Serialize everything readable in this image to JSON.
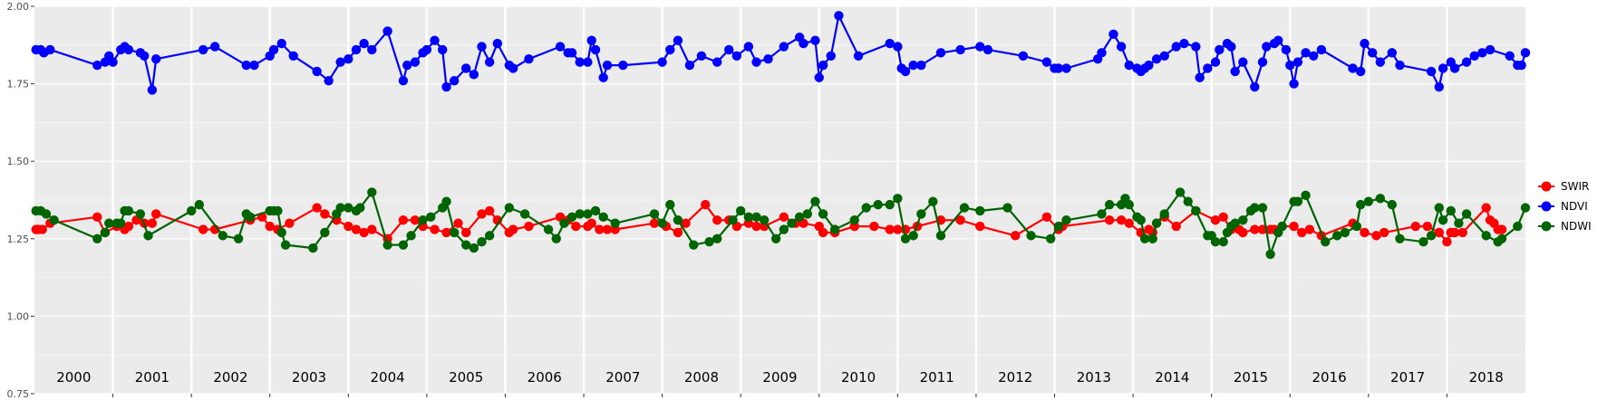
{
  "chart_data": {
    "type": "line",
    "title": "",
    "xlabel": "",
    "ylabel": "",
    "ylim": [
      0.75,
      2.0
    ],
    "y_ticks": [
      "0.75",
      "1.00",
      "1.25",
      "1.50",
      "1.75",
      "2.00"
    ],
    "xlim": [
      2000.0,
      2019.0
    ],
    "year_labels": [
      "2000",
      "2001",
      "2002",
      "2003",
      "2004",
      "2005",
      "2006",
      "2007",
      "2008",
      "2009",
      "2010",
      "2011",
      "2012",
      "2013",
      "2014",
      "2015",
      "2016",
      "2017",
      "2018"
    ],
    "grid": true,
    "legend_position": "right",
    "series": [
      {
        "name": "SWIR",
        "color": "#ff0000",
        "x": [
          2000.02,
          2000.05,
          2000.1,
          2000.2,
          2000.8,
          2000.9,
          2001.05,
          2001.15,
          2001.2,
          2001.3,
          2001.4,
          2001.5,
          2001.55,
          2002.15,
          2002.3,
          2002.75,
          2002.9,
          2003.0,
          2003.1,
          2003.25,
          2003.6,
          2003.7,
          2003.85,
          2004.0,
          2004.1,
          2004.2,
          2004.3,
          2004.5,
          2004.7,
          2004.85,
          2004.95,
          2005.1,
          2005.25,
          2005.4,
          2005.5,
          2005.7,
          2005.8,
          2005.9,
          2006.05,
          2006.1,
          2006.3,
          2006.7,
          2006.8,
          2006.9,
          2007.05,
          2007.1,
          2007.2,
          2007.3,
          2007.4,
          2007.9,
          2008.05,
          2008.2,
          2008.3,
          2008.55,
          2008.7,
          2008.85,
          2008.95,
          2009.1,
          2009.2,
          2009.3,
          2009.55,
          2009.7,
          2009.8,
          2010.0,
          2010.05,
          2010.2,
          2010.45,
          2010.7,
          2010.9,
          2011.0,
          2011.1,
          2011.25,
          2011.55,
          2011.8,
          2012.05,
          2012.5,
          2012.9,
          2013.05,
          2013.1,
          2013.7,
          2013.85,
          2013.95,
          2014.1,
          2014.2,
          2014.25,
          2014.3,
          2014.4,
          2014.55,
          2014.8,
          2015.05,
          2015.15,
          2015.25,
          2015.35,
          2015.4,
          2015.55,
          2015.65,
          2015.75,
          2015.8,
          2015.9,
          2016.05,
          2016.15,
          2016.25,
          2016.4,
          2016.8,
          2016.95,
          2017.1,
          2017.2,
          2017.6,
          2017.75,
          2017.9,
          2018.0,
          2018.05,
          2018.1,
          2018.2,
          2018.5,
          2018.55,
          2018.6,
          2018.65,
          2018.7
        ],
        "values": [
          1.28,
          1.28,
          1.28,
          1.3,
          1.32,
          1.27,
          1.29,
          1.28,
          1.29,
          1.31,
          1.3,
          1.3,
          1.33,
          1.28,
          1.28,
          1.31,
          1.32,
          1.29,
          1.28,
          1.3,
          1.35,
          1.33,
          1.31,
          1.29,
          1.28,
          1.27,
          1.28,
          1.25,
          1.31,
          1.31,
          1.29,
          1.28,
          1.27,
          1.3,
          1.27,
          1.33,
          1.34,
          1.31,
          1.27,
          1.28,
          1.29,
          1.32,
          1.31,
          1.29,
          1.29,
          1.3,
          1.28,
          1.28,
          1.28,
          1.3,
          1.29,
          1.27,
          1.3,
          1.36,
          1.31,
          1.31,
          1.29,
          1.3,
          1.29,
          1.29,
          1.32,
          1.3,
          1.3,
          1.29,
          1.27,
          1.27,
          1.29,
          1.29,
          1.28,
          1.28,
          1.28,
          1.29,
          1.31,
          1.31,
          1.29,
          1.26,
          1.32,
          1.28,
          1.29,
          1.31,
          1.31,
          1.3,
          1.27,
          1.28,
          1.27,
          1.3,
          1.32,
          1.29,
          1.34,
          1.31,
          1.32,
          1.28,
          1.28,
          1.27,
          1.28,
          1.28,
          1.28,
          1.28,
          1.29,
          1.29,
          1.27,
          1.28,
          1.26,
          1.3,
          1.27,
          1.26,
          1.27,
          1.29,
          1.29,
          1.27,
          1.24,
          1.27,
          1.27,
          1.27,
          1.35,
          1.31,
          1.3,
          1.28,
          1.28
        ]
      },
      {
        "name": "NDVI",
        "color": "#0000ff",
        "x": [
          2000.02,
          2000.08,
          2000.12,
          2000.2,
          2000.8,
          2000.9,
          2000.95,
          2001.0,
          2001.1,
          2001.15,
          2001.2,
          2001.35,
          2001.4,
          2001.5,
          2001.55,
          2002.15,
          2002.3,
          2002.7,
          2002.8,
          2003.0,
          2003.05,
          2003.15,
          2003.3,
          2003.6,
          2003.75,
          2003.9,
          2004.0,
          2004.1,
          2004.2,
          2004.3,
          2004.5,
          2004.7,
          2004.75,
          2004.85,
          2004.95,
          2005.0,
          2005.1,
          2005.2,
          2005.25,
          2005.35,
          2005.5,
          2005.6,
          2005.7,
          2005.8,
          2005.9,
          2006.05,
          2006.1,
          2006.3,
          2006.7,
          2006.8,
          2006.85,
          2006.95,
          2007.05,
          2007.1,
          2007.15,
          2007.25,
          2007.3,
          2007.5,
          2008.0,
          2008.1,
          2008.2,
          2008.35,
          2008.5,
          2008.7,
          2008.85,
          2008.95,
          2009.1,
          2009.2,
          2009.35,
          2009.55,
          2009.75,
          2009.8,
          2009.95,
          2010.0,
          2010.05,
          2010.15,
          2010.25,
          2010.5,
          2010.9,
          2011.0,
          2011.05,
          2011.1,
          2011.2,
          2011.3,
          2011.55,
          2011.8,
          2012.05,
          2012.15,
          2012.6,
          2012.9,
          2013.0,
          2013.05,
          2013.15,
          2013.55,
          2013.6,
          2013.75,
          2013.85,
          2013.95,
          2014.05,
          2014.1,
          2014.15,
          2014.2,
          2014.3,
          2014.4,
          2014.55,
          2014.65,
          2014.8,
          2014.85,
          2014.95,
          2015.05,
          2015.1,
          2015.2,
          2015.25,
          2015.3,
          2015.4,
          2015.55,
          2015.65,
          2015.7,
          2015.8,
          2015.85,
          2015.95,
          2016.0,
          2016.05,
          2016.1,
          2016.2,
          2016.3,
          2016.4,
          2016.8,
          2016.9,
          2016.95,
          2017.05,
          2017.15,
          2017.3,
          2017.4,
          2017.8,
          2017.9,
          2017.95,
          2018.05,
          2018.1,
          2018.25,
          2018.35,
          2018.45,
          2018.55,
          2018.8,
          2018.9,
          2018.95,
          2019.0
        ],
        "values": [
          1.86,
          1.86,
          1.85,
          1.86,
          1.81,
          1.82,
          1.84,
          1.82,
          1.86,
          1.87,
          1.86,
          1.85,
          1.84,
          1.73,
          1.83,
          1.86,
          1.87,
          1.81,
          1.81,
          1.84,
          1.86,
          1.88,
          1.84,
          1.79,
          1.76,
          1.82,
          1.83,
          1.86,
          1.88,
          1.86,
          1.92,
          1.76,
          1.81,
          1.82,
          1.85,
          1.86,
          1.89,
          1.86,
          1.74,
          1.76,
          1.8,
          1.78,
          1.87,
          1.82,
          1.88,
          1.81,
          1.8,
          1.83,
          1.87,
          1.85,
          1.85,
          1.82,
          1.82,
          1.89,
          1.86,
          1.77,
          1.81,
          1.81,
          1.82,
          1.86,
          1.89,
          1.81,
          1.84,
          1.82,
          1.86,
          1.84,
          1.87,
          1.82,
          1.83,
          1.87,
          1.9,
          1.88,
          1.89,
          1.77,
          1.81,
          1.84,
          1.97,
          1.84,
          1.88,
          1.87,
          1.8,
          1.79,
          1.81,
          1.81,
          1.85,
          1.86,
          1.87,
          1.86,
          1.84,
          1.82,
          1.8,
          1.8,
          1.8,
          1.83,
          1.85,
          1.91,
          1.87,
          1.81,
          1.8,
          1.79,
          1.8,
          1.81,
          1.83,
          1.84,
          1.87,
          1.88,
          1.87,
          1.77,
          1.8,
          1.82,
          1.86,
          1.88,
          1.87,
          1.79,
          1.82,
          1.74,
          1.82,
          1.87,
          1.88,
          1.89,
          1.86,
          1.81,
          1.75,
          1.82,
          1.85,
          1.84,
          1.86,
          1.8,
          1.79,
          1.88,
          1.85,
          1.82,
          1.85,
          1.81,
          1.79,
          1.74,
          1.8,
          1.82,
          1.8,
          1.82,
          1.84,
          1.85,
          1.86,
          1.84,
          1.81,
          1.81,
          1.85
        ]
      },
      {
        "name": "NDWI",
        "color": "#006400",
        "x": [
          2000.02,
          2000.08,
          2000.15,
          2000.25,
          2000.8,
          2000.9,
          2000.95,
          2001.05,
          2001.1,
          2001.15,
          2001.2,
          2001.35,
          2001.45,
          2002.0,
          2002.1,
          2002.4,
          2002.6,
          2002.7,
          2002.75,
          2003.0,
          2003.05,
          2003.1,
          2003.15,
          2003.2,
          2003.55,
          2003.7,
          2003.85,
          2003.9,
          2004.0,
          2004.1,
          2004.15,
          2004.3,
          2004.5,
          2004.7,
          2004.8,
          2004.95,
          2005.05,
          2005.2,
          2005.25,
          2005.35,
          2005.5,
          2005.6,
          2005.7,
          2005.8,
          2006.05,
          2006.25,
          2006.55,
          2006.65,
          2006.75,
          2006.85,
          2006.95,
          2007.05,
          2007.15,
          2007.25,
          2007.4,
          2007.9,
          2008.0,
          2008.1,
          2008.2,
          2008.4,
          2008.6,
          2008.7,
          2008.9,
          2009.0,
          2009.1,
          2009.2,
          2009.3,
          2009.45,
          2009.55,
          2009.65,
          2009.75,
          2009.85,
          2009.95,
          2010.05,
          2010.2,
          2010.45,
          2010.6,
          2010.75,
          2010.9,
          2011.0,
          2011.1,
          2011.2,
          2011.3,
          2011.45,
          2011.55,
          2011.85,
          2012.05,
          2012.4,
          2012.7,
          2012.95,
          2013.05,
          2013.15,
          2013.6,
          2013.7,
          2013.85,
          2013.9,
          2013.95,
          2014.05,
          2014.1,
          2014.15,
          2014.25,
          2014.3,
          2014.4,
          2014.6,
          2014.7,
          2014.8,
          2014.95,
          2015.0,
          2015.05,
          2015.15,
          2015.2,
          2015.25,
          2015.3,
          2015.4,
          2015.5,
          2015.55,
          2015.65,
          2015.75,
          2015.85,
          2015.9,
          2016.05,
          2016.1,
          2016.2,
          2016.45,
          2016.6,
          2016.7,
          2016.85,
          2016.9,
          2017.0,
          2017.15,
          2017.3,
          2017.4,
          2017.7,
          2017.8,
          2017.9,
          2017.95,
          2018.05,
          2018.15,
          2018.25,
          2018.5,
          2018.65,
          2018.7,
          2018.9,
          2019.0
        ],
        "values": [
          1.34,
          1.34,
          1.33,
          1.31,
          1.25,
          1.27,
          1.3,
          1.3,
          1.3,
          1.34,
          1.34,
          1.33,
          1.26,
          1.34,
          1.36,
          1.26,
          1.25,
          1.33,
          1.32,
          1.34,
          1.34,
          1.34,
          1.27,
          1.23,
          1.22,
          1.27,
          1.33,
          1.35,
          1.35,
          1.34,
          1.35,
          1.4,
          1.23,
          1.23,
          1.26,
          1.31,
          1.32,
          1.35,
          1.37,
          1.27,
          1.23,
          1.22,
          1.24,
          1.26,
          1.35,
          1.33,
          1.28,
          1.25,
          1.3,
          1.32,
          1.33,
          1.33,
          1.34,
          1.32,
          1.3,
          1.33,
          1.3,
          1.36,
          1.31,
          1.23,
          1.24,
          1.25,
          1.31,
          1.34,
          1.32,
          1.32,
          1.31,
          1.25,
          1.28,
          1.3,
          1.32,
          1.33,
          1.37,
          1.33,
          1.28,
          1.31,
          1.35,
          1.36,
          1.36,
          1.38,
          1.25,
          1.26,
          1.33,
          1.37,
          1.26,
          1.35,
          1.34,
          1.35,
          1.26,
          1.25,
          1.29,
          1.31,
          1.33,
          1.36,
          1.36,
          1.38,
          1.36,
          1.32,
          1.31,
          1.25,
          1.25,
          1.3,
          1.33,
          1.4,
          1.37,
          1.34,
          1.26,
          1.26,
          1.24,
          1.24,
          1.27,
          1.29,
          1.3,
          1.31,
          1.34,
          1.35,
          1.35,
          1.2,
          1.27,
          1.29,
          1.37,
          1.37,
          1.39,
          1.24,
          1.26,
          1.27,
          1.29,
          1.36,
          1.37,
          1.38,
          1.36,
          1.25,
          1.24,
          1.26,
          1.35,
          1.31,
          1.34,
          1.3,
          1.33,
          1.26,
          1.24,
          1.25,
          1.29,
          1.35
        ]
      }
    ]
  }
}
